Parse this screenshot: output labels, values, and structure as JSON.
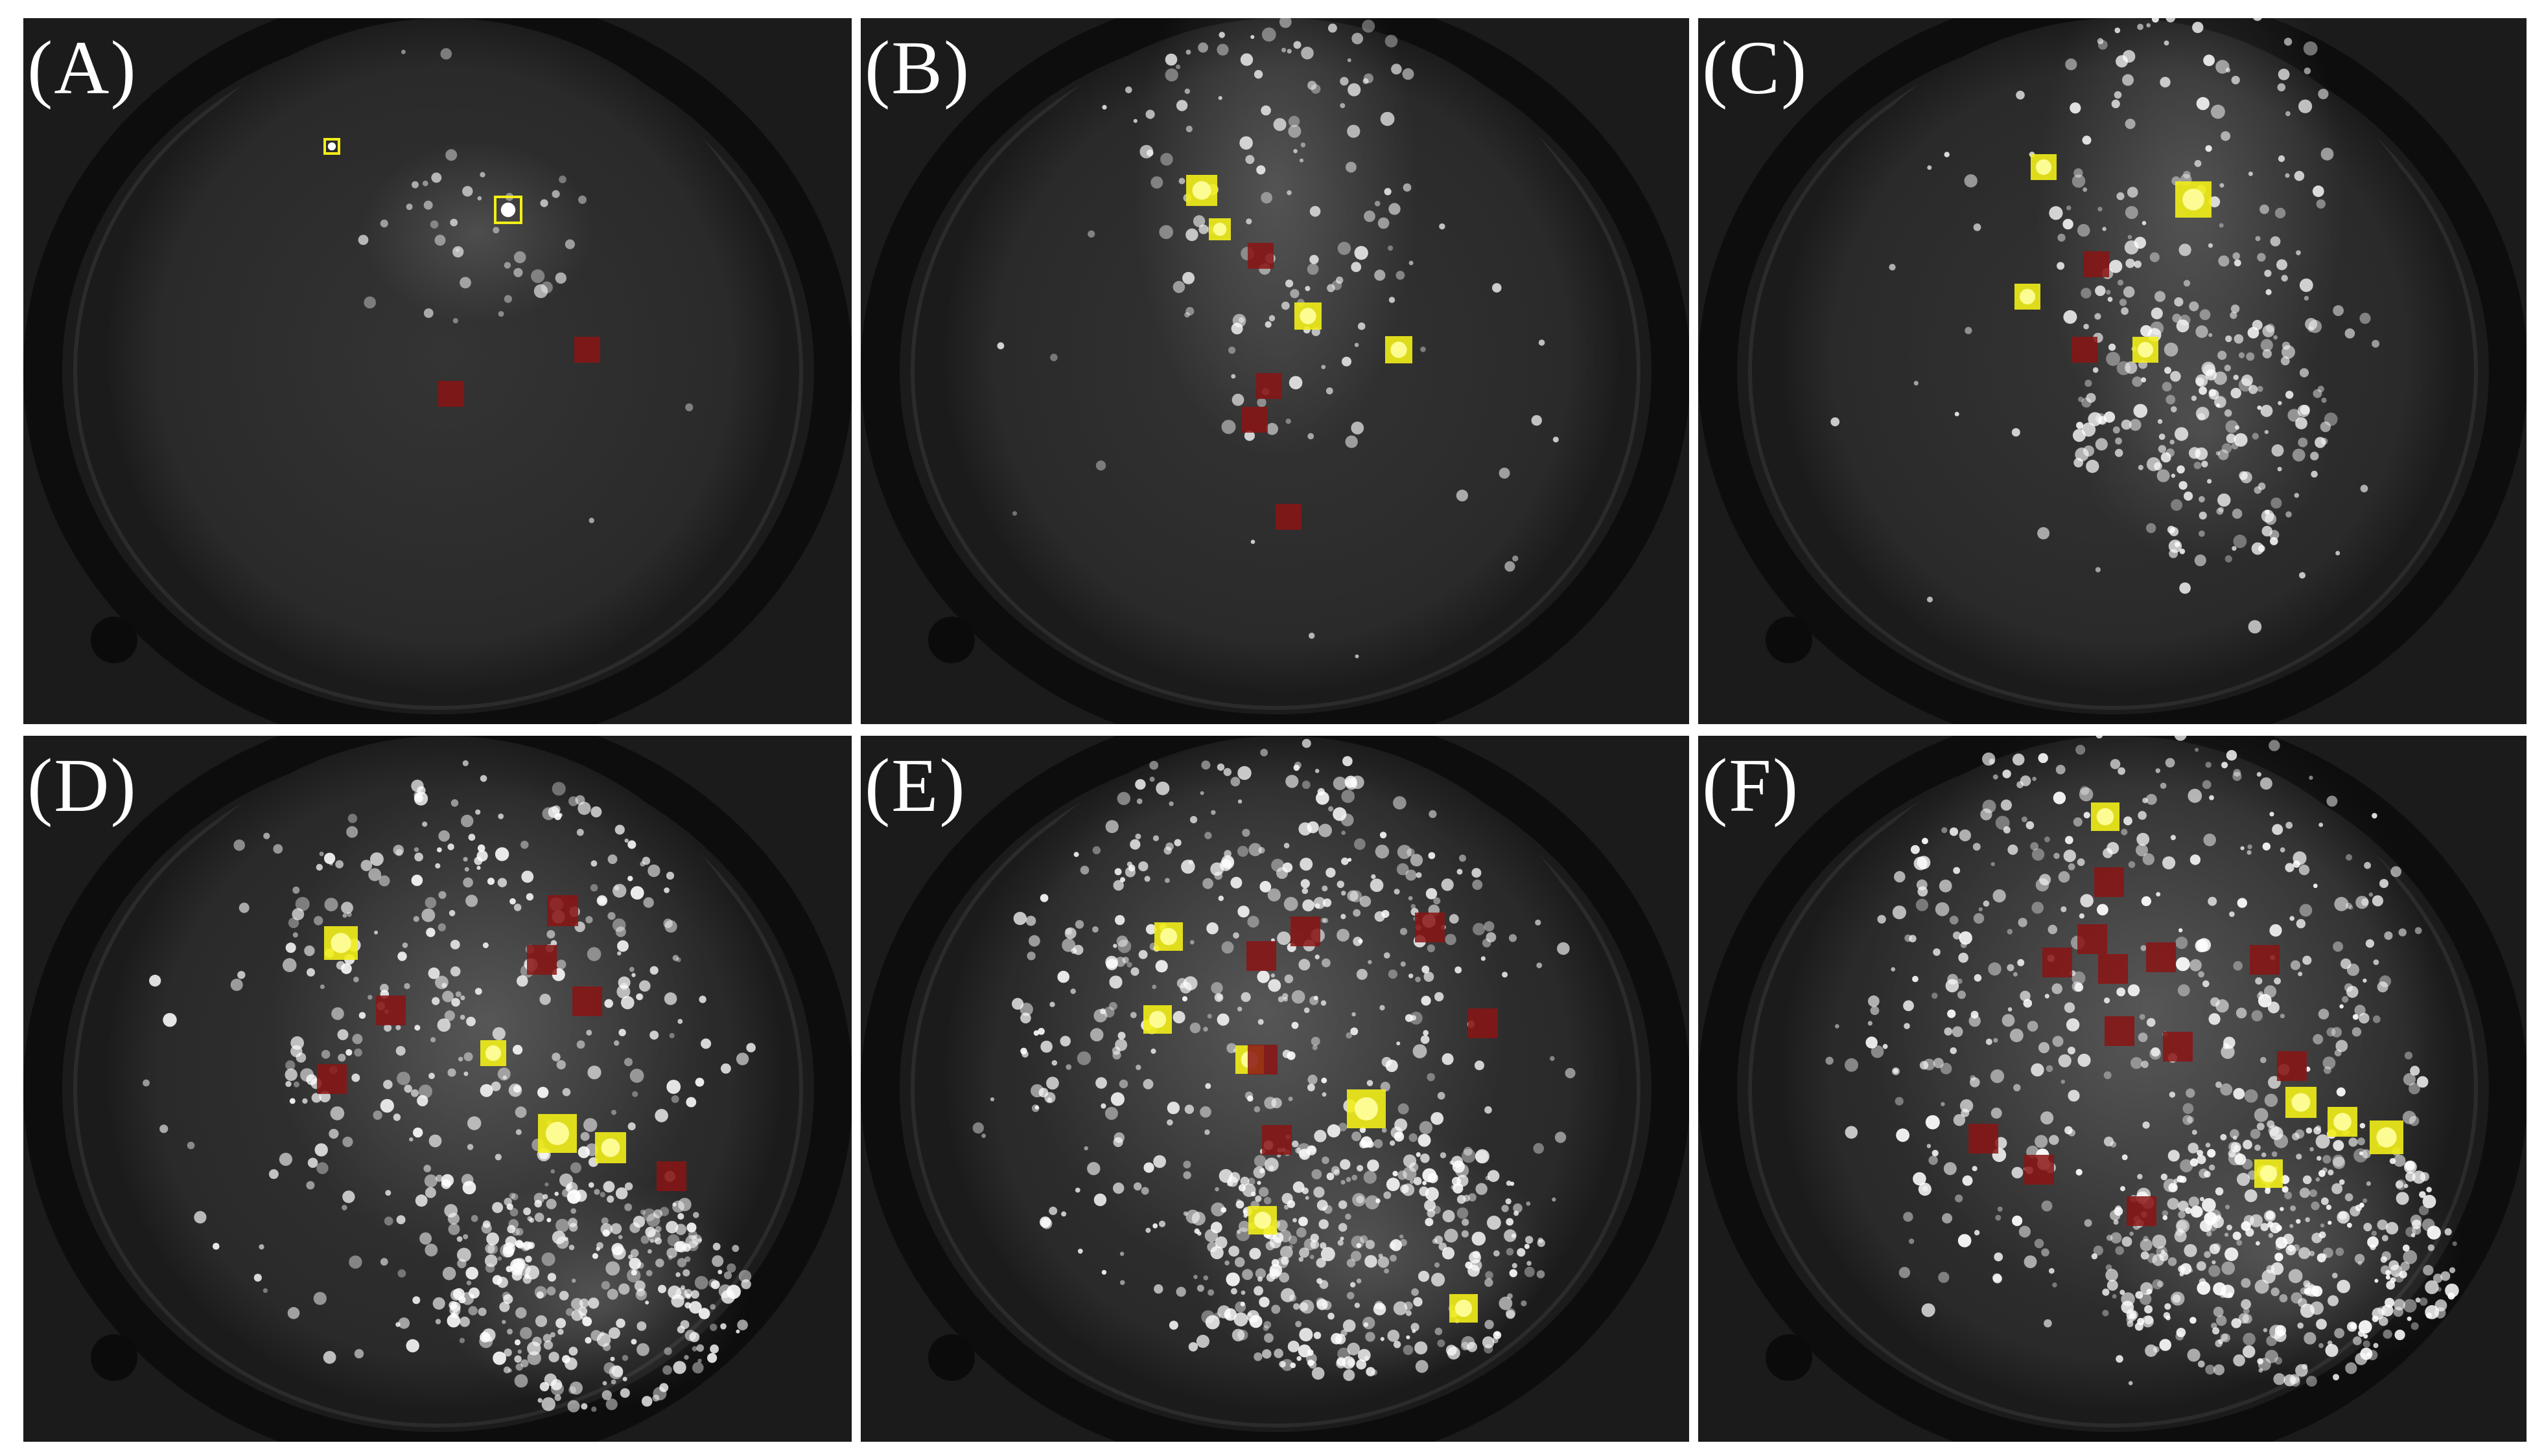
{
  "panels": [
    {
      "id": "A",
      "label": "(A)"
    },
    {
      "id": "B",
      "label": "(B)"
    },
    {
      "id": "C",
      "label": "(C)"
    },
    {
      "id": "D",
      "label": "(D)"
    },
    {
      "id": "E",
      "label": "(E)"
    },
    {
      "id": "F",
      "label": "(F)"
    }
  ],
  "colors": {
    "background": "#ffffff",
    "panel_bg": "#1a1a1a",
    "droplet": "#ffffff",
    "highlight_yellow": "#f2ee1a",
    "highlight_red": "#8a1414"
  }
}
